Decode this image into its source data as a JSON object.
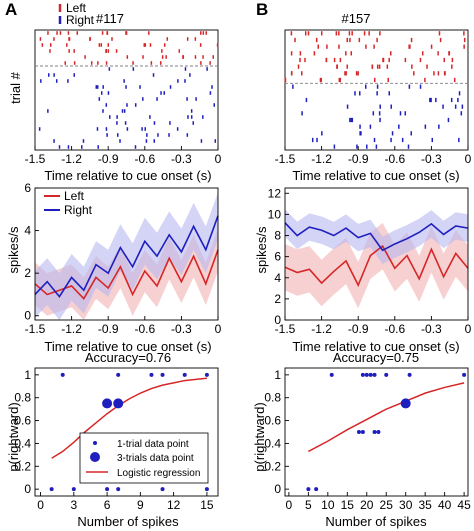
{
  "colors": {
    "left": "#d62728",
    "right": "#1f1fbf",
    "left_band": "#f2b3b3",
    "right_band": "#b8b8f0",
    "axis": "#000000",
    "dashed": "#808080"
  },
  "panel_labels": [
    "A",
    "B"
  ],
  "chart_data": [
    {
      "id": "raster_A",
      "type": "scatter",
      "title": "#117",
      "xlabel": "Time relative to cue onset (s)",
      "ylabel": "trial #",
      "xlim": [
        -1.5,
        0
      ],
      "xticks": [
        "-1.5",
        "-1.2",
        "-0.9",
        "-0.6",
        "-0.3",
        "0"
      ],
      "legend": [
        "Left",
        "Right"
      ],
      "legend_position": "top-left",
      "left_trials": 6,
      "right_trials": 14,
      "divider": "dashed"
    },
    {
      "id": "raster_B",
      "type": "scatter",
      "title": "#157",
      "xlabel": "Time relative to cue onset (s)",
      "xlim": [
        -1.5,
        0
      ],
      "xticks": [
        "-1.5",
        "-1.2",
        "-0.9",
        "-0.6",
        "-0.3",
        "0"
      ],
      "left_trials": 8,
      "right_trials": 10,
      "divider": "dashed"
    },
    {
      "id": "rate_A",
      "type": "line",
      "xlabel": "Time relative to cue onset (s)",
      "ylabel": "spikes/s",
      "xlim": [
        -1.5,
        0
      ],
      "ylim": [
        -0.2,
        6.0
      ],
      "xticks": [
        "-1.5",
        "-1.2",
        "-0.9",
        "-0.6",
        "-0.3",
        "0"
      ],
      "yticks": [
        0,
        2,
        4,
        6
      ],
      "legend": [
        "Left",
        "Right"
      ],
      "legend_position": "top-left",
      "x": [
        -1.5,
        -1.4,
        -1.3,
        -1.2,
        -1.1,
        -1.0,
        -0.9,
        -0.8,
        -0.7,
        -0.6,
        -0.5,
        -0.4,
        -0.3,
        -0.2,
        -0.1,
        0
      ],
      "series": [
        {
          "name": "Left",
          "values": [
            1.5,
            1.0,
            1.2,
            1.4,
            0.8,
            1.8,
            1.3,
            2.3,
            1.0,
            2.1,
            1.4,
            2.7,
            1.6,
            2.8,
            1.5,
            3.1
          ],
          "band": 1.0
        },
        {
          "name": "Right",
          "values": [
            1.0,
            1.6,
            0.9,
            1.8,
            1.2,
            2.4,
            2.0,
            3.2,
            2.3,
            3.5,
            2.8,
            3.8,
            3.0,
            4.2,
            3.1,
            4.7
          ],
          "band": 1.1
        }
      ]
    },
    {
      "id": "rate_B",
      "type": "line",
      "xlabel": "Time relative to cue onset (s)",
      "ylabel": "spikes/s",
      "xlim": [
        -1.5,
        0
      ],
      "ylim": [
        0,
        12.5
      ],
      "xticks": [
        "-1.5",
        "-1.2",
        "-0.9",
        "-0.6",
        "-0.3",
        "0"
      ],
      "yticks": [
        0,
        2,
        4,
        6,
        8,
        10,
        12
      ],
      "x": [
        -1.5,
        -1.4,
        -1.3,
        -1.2,
        -1.1,
        -1.0,
        -0.9,
        -0.8,
        -0.7,
        -0.6,
        -0.5,
        -0.4,
        -0.3,
        -0.2,
        -0.1,
        0
      ],
      "series": [
        {
          "name": "Left",
          "values": [
            5.0,
            4.5,
            4.8,
            3.5,
            4.6,
            5.6,
            3.3,
            6.1,
            7.0,
            4.9,
            6.1,
            3.9,
            6.7,
            4.1,
            6.3,
            4.9
          ],
          "band": 2.2
        },
        {
          "name": "Right",
          "values": [
            9.2,
            8.0,
            8.8,
            8.5,
            8.0,
            8.7,
            7.8,
            8.2,
            6.6,
            7.2,
            7.7,
            8.3,
            9.1,
            8.1,
            8.9,
            8.7
          ],
          "band": 1.3
        }
      ]
    },
    {
      "id": "logit_A",
      "type": "scatter",
      "title": "Accuracy=0.76",
      "xlabel": "Number of spikes",
      "ylabel": "p(rightward)",
      "xlim": [
        -0.5,
        16
      ],
      "ylim": [
        -0.06,
        1.06
      ],
      "xticks": [
        0,
        3,
        6,
        9,
        12,
        15
      ],
      "yticks": [
        0,
        0.2,
        0.4,
        0.6,
        0.8,
        1
      ],
      "legend": [
        "1-trial data point",
        "3-trials data point",
        "Logistic regression"
      ],
      "legend_position": "lower-right",
      "points_1trial": [
        [
          1,
          0
        ],
        [
          3,
          0
        ],
        [
          6,
          0
        ],
        [
          7,
          0
        ],
        [
          11,
          0
        ],
        [
          15,
          0
        ],
        [
          2,
          1
        ],
        [
          7,
          1
        ],
        [
          10,
          1
        ],
        [
          11,
          1
        ],
        [
          13,
          1
        ],
        [
          15,
          1
        ]
      ],
      "points_3trial": [
        [
          6,
          0.75
        ],
        [
          7,
          0.75
        ]
      ],
      "curve": {
        "x": [
          1,
          2,
          3,
          4,
          5,
          6,
          7,
          8,
          9,
          10,
          11,
          12,
          13,
          14,
          15
        ],
        "y": [
          0.27,
          0.33,
          0.41,
          0.5,
          0.58,
          0.66,
          0.73,
          0.79,
          0.84,
          0.88,
          0.91,
          0.93,
          0.95,
          0.96,
          0.97
        ]
      }
    },
    {
      "id": "logit_B",
      "type": "scatter",
      "title": "Accuracy=0.75",
      "xlabel": "Number of spikes",
      "ylabel": "p(rightward)",
      "xlim": [
        -1,
        46
      ],
      "ylim": [
        -0.06,
        1.06
      ],
      "xticks": [
        0,
        5,
        10,
        15,
        20,
        25,
        30,
        35,
        40,
        45
      ],
      "yticks": [
        0,
        0.2,
        0.4,
        0.6,
        0.8,
        1
      ],
      "points_1trial": [
        [
          5,
          0
        ],
        [
          7,
          0
        ],
        [
          11,
          1
        ],
        [
          19,
          1
        ],
        [
          20,
          1
        ],
        [
          21,
          1
        ],
        [
          22,
          1
        ],
        [
          25,
          1
        ],
        [
          31,
          1
        ],
        [
          45,
          1
        ],
        [
          18,
          0.5
        ],
        [
          19,
          0.5
        ],
        [
          22,
          0.5
        ],
        [
          23,
          0.5
        ]
      ],
      "points_3trial": [
        [
          30,
          0.75
        ]
      ],
      "curve": {
        "x": [
          5,
          10,
          15,
          20,
          25,
          30,
          35,
          40,
          45
        ],
        "y": [
          0.33,
          0.42,
          0.52,
          0.61,
          0.7,
          0.77,
          0.84,
          0.89,
          0.93
        ]
      }
    }
  ]
}
